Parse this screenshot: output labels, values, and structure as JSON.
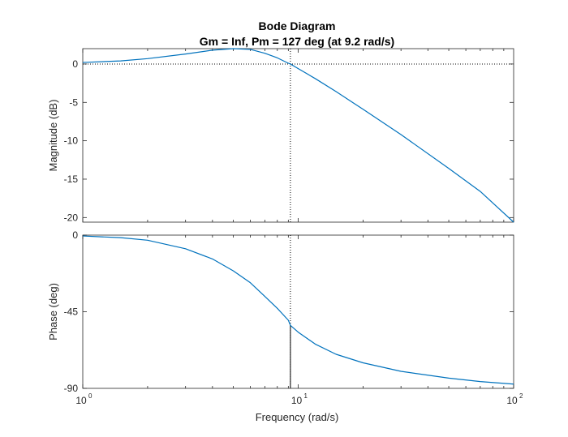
{
  "chart_data": {
    "type": "line",
    "title": "Bode Diagram",
    "subtitle": "Gm = Inf,  Pm = 127 deg (at 9.2 rad/s)",
    "xlabel": "Frequency  (rad/s)",
    "xscale": "log",
    "xlim": [
      1,
      100
    ],
    "x_tick_labels": [
      {
        "base": "10",
        "exp": "0"
      },
      {
        "base": "10",
        "exp": "1"
      },
      {
        "base": "10",
        "exp": "2"
      }
    ],
    "grid": false,
    "crossover_frequency": 9.2,
    "phase_at_crossover": -53,
    "panels": [
      {
        "name": "magnitude",
        "ylabel": "Magnitude (dB)",
        "ylim": [
          -20.6,
          2
        ],
        "yticks": [
          0,
          -5,
          -10,
          -15,
          -20
        ],
        "ytick_labels": [
          "0",
          "-5",
          "-10",
          "-15",
          "-20"
        ],
        "reference_line": 0,
        "series": [
          {
            "color": "#0072BD",
            "x": [
              1,
              1.5,
              2,
              3,
              4,
              5,
              6,
              7,
              8,
              9,
              9.2,
              10,
              12,
              15,
              20,
              30,
              50,
              70,
              100
            ],
            "y": [
              0.2,
              0.4,
              0.7,
              1.3,
              1.8,
              2.0,
              1.9,
              1.4,
              0.8,
              0.1,
              0.0,
              -0.6,
              -1.9,
              -3.6,
              -5.9,
              -9.2,
              -13.6,
              -16.6,
              -20.6
            ]
          }
        ]
      },
      {
        "name": "phase",
        "ylabel": "Phase (deg)",
        "ylim": [
          -90,
          0
        ],
        "yticks": [
          0,
          -45,
          -90
        ],
        "ytick_labels": [
          "0",
          "-45",
          "-90"
        ],
        "series": [
          {
            "color": "#0072BD",
            "x": [
              1,
              1.5,
              2,
              3,
              4,
              5,
              6,
              7,
              8,
              9,
              9.2,
              10,
              12,
              15,
              20,
              30,
              50,
              70,
              100
            ],
            "y": [
              -0.5,
              -1.5,
              -3,
              -8,
              -14,
              -21,
              -28,
              -36,
              -43,
              -50,
              -53,
              -57,
              -64,
              -70,
              -75,
              -80,
              -84,
              -86,
              -87.5
            ]
          }
        ]
      }
    ]
  }
}
